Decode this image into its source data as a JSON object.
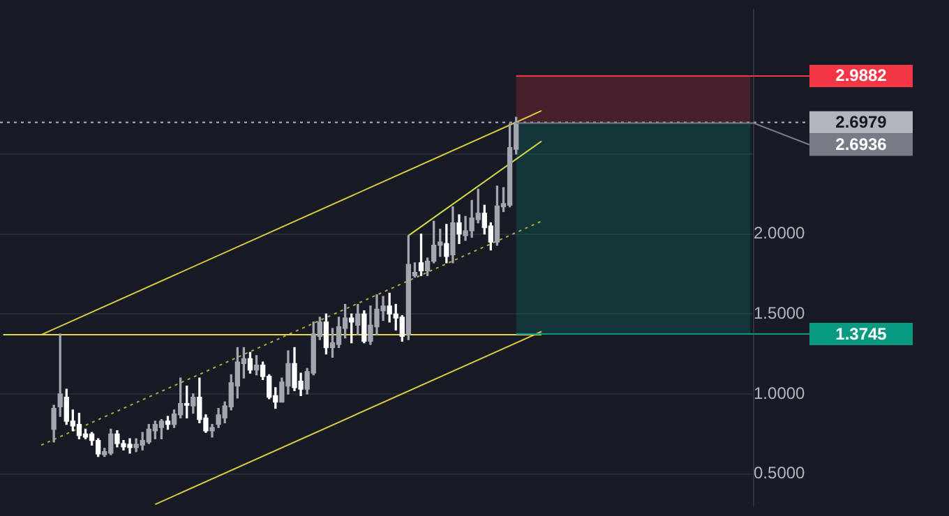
{
  "chart_data": {
    "type": "candlestick",
    "marker": "none",
    "colors": [
      null,
      null,
      null,
      null,
      null,
      null,
      null,
      null,
      "#a3a6af",
      "#a3a6af",
      "#ffffff",
      "#ffffff",
      "#ffffff",
      "#ffffff",
      "#ffffff",
      "#ffffff",
      "#a3a6af",
      "#a3a6af",
      "#ffffff",
      "#ffffff",
      "#ffffff",
      "#a3a6af",
      "#a3a6af",
      "#a3a6af",
      "#a3a6af",
      "#a3a6af",
      "#ffffff",
      "#a3a6af",
      "#a3a6af",
      "#ffffff",
      "#a3a6af",
      "#ffffff",
      "#ffffff",
      "#a3a6af",
      "#a3a6af",
      "#a3a6af",
      "#a3a6af",
      "#a3a6af",
      "#a3a6af",
      "#ffffff",
      "#a3a6af",
      "#ffffff",
      "#ffffff",
      "#ffffff",
      "#a3a6af",
      "#a3a6af",
      "#ffffff",
      "#ffffff",
      "#a3a6af",
      "#a3a6af",
      "#a3a6af",
      "#ffffff",
      "#a3a6af",
      "#a3a6af",
      "#a3a6af",
      "#ffffff",
      "#a3a6af",
      "#ffffff",
      "#a3a6af",
      "#a3a6af",
      "#a3a6af",
      "#ffffff",
      "#ffffff",
      "#ffffff",
      "#a3a6af",
      "#a3a6af",
      "#ffffff",
      "#a3a6af",
      "#a3a6af",
      "#a3a6af",
      "#ffffff",
      "#a3a6af",
      "#ffffff",
      "#a3a6af",
      "#a3a6af",
      "#a3a6af",
      "#ffffff",
      "#ffffff",
      "#a3a6af",
      "#a3a6af",
      "#a3a6af",
      "#a3a6af",
      null,
      null,
      null,
      null,
      null,
      null,
      null,
      null,
      null,
      null,
      null,
      null,
      null,
      null,
      null,
      null,
      null,
      null,
      null,
      null,
      null,
      null,
      null,
      null,
      null,
      null,
      null,
      null,
      null,
      null,
      null,
      null,
      null,
      null,
      null,
      null,
      null
    ],
    "grid": "y",
    "tick_labels": "y",
    "ylim": [
      0.3,
      3.4
    ],
    "yticks": [
      {
        "value": 0.5,
        "label": "0.5000"
      },
      {
        "value": 1.0,
        "label": "1.0000"
      },
      {
        "value": 1.5,
        "label": "1.5000"
      },
      {
        "value": 2.0,
        "label": "2.0000"
      },
      {
        "value": 2.5,
        "label": null
      }
    ],
    "categories": [
      null,
      null,
      null,
      null,
      null,
      null,
      null,
      null,
      null,
      null,
      null,
      null,
      null,
      null,
      null,
      null,
      null,
      null,
      null,
      null,
      null,
      null,
      null,
      null,
      null,
      null,
      null,
      null,
      null,
      null,
      null,
      null,
      null,
      null,
      null,
      null,
      null,
      null,
      null,
      null,
      null,
      null,
      null,
      null,
      null,
      null,
      null,
      null,
      null,
      null,
      null,
      null,
      null,
      null,
      null,
      null,
      null,
      null,
      null,
      null,
      null,
      null,
      null,
      null,
      null,
      null,
      null,
      null,
      null,
      null,
      null,
      null,
      null,
      null,
      null,
      null,
      null,
      null,
      null,
      null,
      null,
      null,
      null,
      null,
      null,
      null,
      null,
      null,
      null,
      null,
      null,
      null,
      null,
      null,
      null,
      null,
      null,
      null,
      null,
      null,
      null,
      null,
      null,
      null,
      null,
      null,
      null,
      null,
      null,
      null,
      null,
      null,
      null,
      null,
      null,
      null,
      null,
      null,
      null
    ],
    "ohlc": [
      null,
      null,
      null,
      null,
      null,
      null,
      null,
      null,
      [
        0.78,
        0.93,
        0.7,
        0.91
      ],
      [
        0.92,
        1.375,
        0.86,
        1.0
      ],
      [
        0.98,
        1.03,
        0.81,
        0.83
      ],
      [
        0.83,
        0.9,
        0.77,
        0.8
      ],
      [
        0.81,
        0.88,
        0.72,
        0.74
      ],
      [
        0.75,
        0.78,
        0.72,
        0.73
      ],
      [
        0.75,
        0.76,
        0.68,
        0.71
      ],
      [
        0.71,
        0.72,
        0.61,
        0.625
      ],
      [
        0.62,
        0.66,
        0.61,
        0.64
      ],
      [
        0.63,
        0.78,
        0.62,
        0.75
      ],
      [
        0.75,
        0.77,
        0.67,
        0.69
      ],
      [
        0.69,
        0.71,
        0.65,
        0.67
      ],
      [
        0.685,
        0.72,
        0.63,
        0.665
      ],
      [
        0.665,
        0.72,
        0.64,
        0.685
      ],
      [
        0.68,
        0.76,
        0.65,
        0.71
      ],
      [
        0.7,
        0.81,
        0.69,
        0.78
      ],
      [
        0.77,
        0.83,
        0.72,
        0.81
      ],
      [
        0.79,
        0.84,
        0.72,
        0.83
      ],
      [
        0.83,
        0.86,
        0.78,
        0.81
      ],
      [
        0.81,
        0.9,
        0.79,
        0.875
      ],
      [
        0.87,
        1.1,
        0.85,
        0.94
      ],
      [
        0.94,
        1.05,
        0.85,
        0.93
      ],
      [
        0.925,
        1.0,
        0.88,
        0.98
      ],
      [
        0.98,
        1.1,
        0.82,
        0.84
      ],
      [
        0.85,
        0.87,
        0.76,
        0.77
      ],
      [
        0.77,
        0.81,
        0.73,
        0.79
      ],
      [
        0.81,
        0.91,
        0.79,
        0.87
      ],
      [
        0.85,
        0.95,
        0.82,
        0.925
      ],
      [
        0.92,
        1.12,
        0.9,
        1.07
      ],
      [
        1.05,
        1.29,
        0.975,
        1.2
      ],
      [
        1.19,
        1.29,
        1.1,
        1.22
      ],
      [
        1.22,
        1.26,
        1.13,
        1.15
      ],
      [
        1.15,
        1.24,
        1.12,
        1.18
      ],
      [
        1.18,
        1.2,
        1.09,
        1.11
      ],
      [
        1.11,
        1.12,
        0.97,
        0.98
      ],
      [
        0.99,
        1.04,
        0.91,
        0.95
      ],
      [
        0.95,
        1.1,
        0.95,
        1.075
      ],
      [
        1.05,
        1.27,
        1.0,
        1.19
      ],
      [
        1.19,
        1.29,
        1.02,
        1.04
      ],
      [
        1.08,
        1.13,
        0.99,
        1.03
      ],
      [
        1.03,
        1.16,
        1.0,
        1.14
      ],
      [
        1.13,
        1.45,
        1.12,
        1.375
      ],
      [
        1.36,
        1.48,
        1.34,
        1.45
      ],
      [
        1.45,
        1.5,
        1.25,
        1.29
      ],
      [
        1.29,
        1.41,
        1.23,
        1.32
      ],
      [
        1.31,
        1.48,
        1.29,
        1.42
      ],
      [
        1.41,
        1.56,
        1.35,
        1.475
      ],
      [
        1.475,
        1.5,
        1.32,
        1.45
      ],
      [
        1.43,
        1.56,
        1.37,
        1.5
      ],
      [
        1.5,
        1.52,
        1.32,
        1.33
      ],
      [
        1.33,
        1.55,
        1.31,
        1.43
      ],
      [
        1.42,
        1.62,
        1.37,
        1.53
      ],
      [
        1.52,
        1.61,
        1.46,
        1.55
      ],
      [
        1.55,
        1.63,
        1.45,
        1.5
      ],
      [
        1.5,
        1.56,
        1.4,
        1.475
      ],
      [
        1.48,
        1.49,
        1.33,
        1.36
      ],
      [
        1.37,
        1.99,
        1.34,
        1.81
      ],
      [
        1.74,
        1.82,
        1.73,
        1.76
      ],
      [
        1.82,
        2.0,
        1.74,
        1.77
      ],
      [
        1.77,
        1.85,
        1.74,
        1.83
      ],
      [
        1.83,
        2.08,
        1.82,
        1.93
      ],
      [
        1.93,
        2.03,
        1.86,
        1.95
      ],
      [
        1.94,
        2.06,
        1.82,
        1.86
      ],
      [
        1.87,
        2.17,
        1.82,
        2.07
      ],
      [
        2.07,
        2.12,
        1.94,
        2.0
      ],
      [
        1.99,
        2.11,
        1.96,
        2.02
      ],
      [
        2.02,
        2.21,
        1.98,
        2.1
      ],
      [
        2.09,
        2.28,
        2.07,
        2.13
      ],
      [
        2.13,
        2.18,
        2.0,
        2.04
      ],
      [
        2.05,
        2.07,
        1.9,
        1.95
      ],
      [
        1.95,
        2.3,
        1.93,
        2.175
      ],
      [
        2.17,
        2.29,
        2.14,
        2.19
      ],
      [
        2.18,
        2.69,
        2.17,
        2.54
      ],
      [
        2.53,
        2.73,
        2.5,
        2.6979
      ],
      null,
      null,
      null,
      null,
      null,
      null,
      null,
      null,
      null,
      null,
      null,
      null,
      null,
      null,
      null,
      null,
      null,
      null,
      null,
      null,
      null,
      null,
      null,
      null,
      null,
      null,
      null,
      null,
      null,
      null,
      null,
      null,
      null,
      null,
      null,
      null,
      null
    ],
    "series": [
      {
        "type": "line",
        "color": "#e8d842",
        "line_style": "solid",
        "values": [
          1.37,
          null,
          null,
          null,
          null,
          null,
          null,
          null,
          null,
          null,
          null,
          null,
          null,
          null,
          null,
          null,
          null,
          null,
          null,
          null,
          null,
          null,
          null,
          null,
          null,
          null,
          null,
          null,
          null,
          null,
          null,
          null,
          null,
          null,
          null,
          null,
          null,
          null,
          null,
          null,
          null,
          null,
          null,
          null,
          null,
          null,
          null,
          null,
          null,
          null,
          null,
          null,
          null,
          null,
          null,
          null,
          null,
          null,
          null,
          null,
          null,
          null,
          null,
          null,
          null,
          null,
          null,
          null,
          null,
          null,
          null,
          null,
          null,
          null,
          null,
          null,
          null,
          null,
          null,
          null,
          null,
          null,
          null,
          null,
          null,
          1.37,
          null,
          null,
          null,
          null,
          null,
          null,
          null,
          null,
          null,
          null,
          null,
          null,
          null,
          null,
          null,
          null,
          null,
          null,
          null,
          null,
          null,
          null,
          null,
          null,
          null,
          null,
          null,
          null,
          null,
          null,
          null,
          null,
          null
        ]
      },
      {
        "type": "line",
        "color": "#d8c93e",
        "line_style": "solid",
        "values": [
          null,
          null,
          null,
          null,
          null,
          null,
          1.37,
          null,
          null,
          null,
          null,
          null,
          null,
          null,
          null,
          null,
          null,
          null,
          null,
          null,
          null,
          null,
          null,
          null,
          null,
          null,
          null,
          null,
          null,
          null,
          null,
          null,
          null,
          null,
          null,
          null,
          null,
          null,
          null,
          null,
          null,
          null,
          null,
          null,
          null,
          null,
          null,
          null,
          null,
          null,
          null,
          null,
          null,
          null,
          null,
          null,
          null,
          null,
          null,
          null,
          null,
          null,
          null,
          null,
          null,
          null,
          null,
          null,
          null,
          null,
          null,
          null,
          null,
          null,
          null,
          null,
          null,
          null,
          null,
          null,
          null,
          null,
          null,
          null,
          null,
          2.77,
          null,
          null,
          null,
          null,
          null,
          null,
          null,
          null,
          null,
          null,
          null,
          null,
          null,
          null,
          null,
          null,
          null,
          null,
          null,
          null,
          null,
          null,
          null,
          null,
          null,
          null,
          null,
          null,
          null,
          null,
          null,
          null,
          null
        ]
      },
      {
        "type": "line",
        "color": "#b5a83a",
        "line_style": "dotted",
        "values": [
          null,
          null,
          null,
          null,
          null,
          null,
          0.68,
          null,
          null,
          null,
          null,
          null,
          null,
          null,
          null,
          null,
          null,
          null,
          null,
          null,
          null,
          null,
          null,
          null,
          null,
          null,
          null,
          null,
          null,
          null,
          null,
          null,
          null,
          null,
          null,
          null,
          null,
          null,
          null,
          null,
          null,
          null,
          null,
          null,
          null,
          null,
          null,
          null,
          null,
          null,
          null,
          null,
          null,
          null,
          null,
          null,
          null,
          null,
          null,
          null,
          null,
          null,
          null,
          null,
          null,
          null,
          null,
          null,
          null,
          null,
          null,
          null,
          null,
          null,
          null,
          null,
          null,
          null,
          null,
          null,
          null,
          null,
          null,
          null,
          null,
          2.08,
          null,
          null,
          null,
          null,
          null,
          null,
          null,
          null,
          null,
          null,
          null,
          null,
          null,
          null,
          null,
          null,
          null,
          null,
          null,
          null,
          null,
          null,
          null,
          null,
          null,
          null,
          null,
          null,
          null,
          null,
          null,
          null,
          null
        ]
      },
      {
        "type": "line",
        "color": "#d8c93e",
        "line_style": "solid",
        "values": [
          null,
          null,
          null,
          null,
          null,
          null,
          null,
          null,
          null,
          null,
          null,
          null,
          null,
          null,
          null,
          null,
          null,
          null,
          null,
          null,
          null,
          null,
          null,
          null,
          0.31,
          null,
          null,
          null,
          null,
          null,
          null,
          null,
          null,
          null,
          null,
          null,
          null,
          null,
          null,
          null,
          null,
          null,
          null,
          null,
          null,
          null,
          null,
          null,
          null,
          null,
          null,
          null,
          null,
          null,
          null,
          null,
          null,
          null,
          null,
          null,
          null,
          null,
          null,
          null,
          null,
          null,
          null,
          null,
          null,
          null,
          null,
          null,
          null,
          null,
          null,
          null,
          null,
          null,
          null,
          null,
          null,
          null,
          null,
          null,
          null,
          1.39,
          null,
          null,
          null,
          null,
          null,
          null,
          null,
          null,
          null,
          null,
          null,
          null,
          null,
          null,
          null,
          null,
          null,
          null,
          null,
          null,
          null,
          null,
          null,
          null,
          null,
          null,
          null,
          null,
          null,
          null,
          null,
          null,
          null
        ]
      },
      {
        "type": "line",
        "color": "#d8d842",
        "line_style": "solid",
        "values": [
          null,
          null,
          null,
          null,
          null,
          null,
          null,
          null,
          null,
          null,
          null,
          null,
          null,
          null,
          null,
          null,
          null,
          null,
          null,
          null,
          null,
          null,
          null,
          null,
          null,
          null,
          null,
          null,
          null,
          null,
          null,
          null,
          null,
          null,
          null,
          null,
          null,
          null,
          null,
          null,
          null,
          null,
          null,
          null,
          null,
          null,
          null,
          null,
          null,
          null,
          null,
          null,
          null,
          null,
          null,
          null,
          null,
          null,
          null,
          null,
          null,
          null,
          null,
          null,
          1.99,
          null,
          null,
          null,
          null,
          null,
          null,
          null,
          null,
          null,
          null,
          null,
          null,
          null,
          null,
          null,
          null,
          null,
          null,
          null,
          null,
          2.58,
          null,
          null,
          null,
          null,
          null,
          null,
          null,
          null,
          null,
          null,
          null,
          null,
          null,
          null,
          null,
          null,
          null,
          null,
          null,
          null,
          null,
          null,
          null,
          null,
          null,
          null,
          null,
          null,
          null,
          null,
          null,
          null,
          null
        ]
      }
    ],
    "bands": [
      {
        "axis": "y",
        "from": 2.6979,
        "to": 2.9882,
        "color": "#f23645"
      },
      {
        "axis": "y",
        "from": 1.3745,
        "to": 2.6979,
        "color": "#089981"
      }
    ],
    "ref_lines": [
      {
        "axis": "y",
        "value": 2.9882,
        "label": "2.9882",
        "color": "#f23645"
      },
      {
        "axis": "y",
        "value": 2.6979,
        "label": "2.6979",
        "color": "#b2b5be",
        "line_style": "dotted"
      },
      {
        "axis": "y",
        "value": 2.6936,
        "label": "2.6936",
        "color": "#787b86"
      },
      {
        "axis": "y",
        "value": 1.3745,
        "label": "1.3745",
        "color": "#089981"
      }
    ]
  }
}
